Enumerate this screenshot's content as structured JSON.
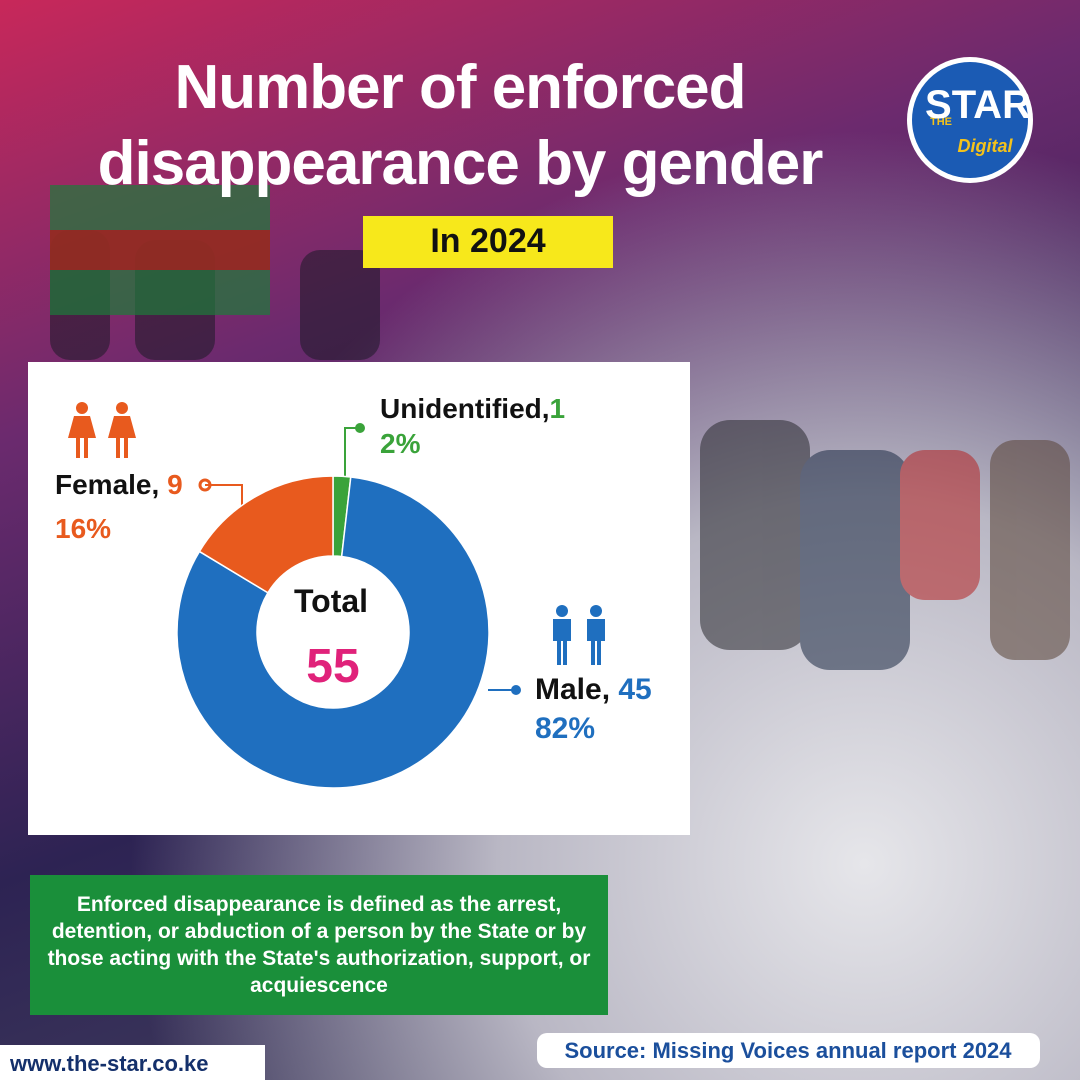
{
  "chart_data": {
    "type": "donut",
    "title": "Number of enforced disappearance by gender",
    "subtitle": "In 2024",
    "categories": [
      "Unidentified,",
      "Male,",
      "Female,"
    ],
    "values": [
      1,
      45,
      9
    ],
    "percent_labels": [
      "2%",
      "82%",
      "16%"
    ],
    "colors": [
      "#3aa33a",
      "#1f6fbf",
      "#e85a1e"
    ],
    "center_label": "Total",
    "total": 55
  },
  "logo": {
    "top": "THE",
    "name": "STAR",
    "sub": "Digital"
  },
  "note": "Enforced disappearance is defined as the arrest, detention, or abduction of a person by the State or by those acting with the State's authorization, support, or acquiescence",
  "source": "Source: Missing Voices annual report 2024",
  "website": "www.the-star.co.ke"
}
